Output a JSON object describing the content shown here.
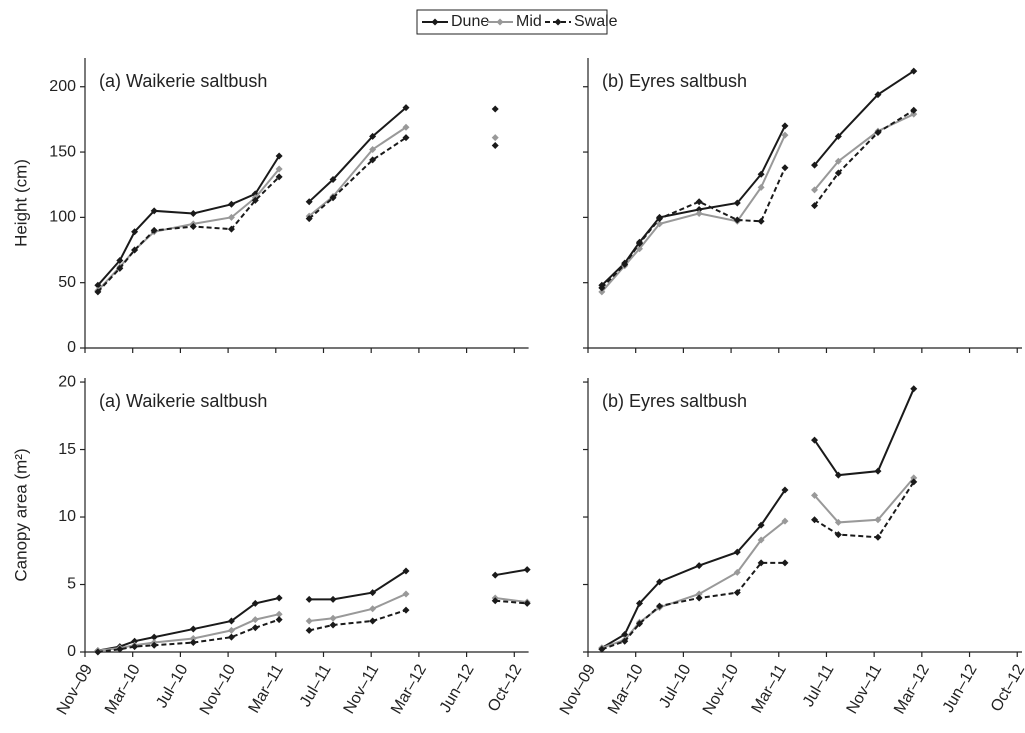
{
  "chart_data": [
    {
      "type": "line",
      "panel": "(a)",
      "title": "Waikerie saltbush",
      "ylabel": "Height (cm)",
      "x": [
        0.27,
        0.73,
        1.04,
        1.45,
        2.27,
        3.07,
        3.57,
        4.07,
        null,
        4.7,
        5.2,
        6.03,
        6.73,
        null,
        8.6
      ],
      "xlim": [
        0,
        9.3
      ],
      "xticks": [
        0,
        1,
        2,
        3,
        4,
        5,
        6,
        7,
        8,
        9
      ],
      "xtick_labels": false,
      "ylim": [
        0,
        222
      ],
      "yticks": [
        0,
        50,
        100,
        150,
        200
      ],
      "ytick_labels": true,
      "series": [
        {
          "name": "Dune",
          "color": "#1a1a1a",
          "linestyle": "solid",
          "values": [
            48,
            67,
            89,
            105,
            103,
            110,
            118,
            147,
            null,
            112,
            129,
            162,
            184,
            null,
            183
          ]
        },
        {
          "name": "Mid",
          "color": "#999999",
          "linestyle": "solid",
          "values": [
            44,
            62,
            75,
            89,
            95,
            100,
            115,
            137,
            null,
            101,
            116,
            152,
            169,
            null,
            161
          ]
        },
        {
          "name": "Swale",
          "color": "#1a1a1a",
          "linestyle": "dashed",
          "values": [
            43,
            61,
            75,
            90,
            93,
            91,
            113,
            131,
            null,
            99,
            115,
            144,
            161,
            null,
            155
          ]
        }
      ]
    },
    {
      "type": "line",
      "panel": "(b)",
      "title": "Eyres saltbush",
      "x": [
        0.29,
        0.77,
        1.08,
        1.5,
        2.33,
        3.13,
        3.63,
        4.13,
        null,
        4.75,
        5.25,
        6.08,
        6.83
      ],
      "xlim": [
        0,
        9.1
      ],
      "xticks": [
        0,
        1,
        2,
        3,
        4,
        5,
        6,
        7,
        8,
        9
      ],
      "xtick_labels": false,
      "ylim": [
        0,
        222
      ],
      "yticks": [
        0,
        50,
        100,
        150,
        200
      ],
      "ytick_labels": false,
      "series": [
        {
          "name": "Dune",
          "color": "#1a1a1a",
          "linestyle": "solid",
          "values": [
            48,
            65,
            81,
            100,
            106,
            111,
            133,
            170,
            null,
            140,
            162,
            194,
            212
          ]
        },
        {
          "name": "Mid",
          "color": "#999999",
          "linestyle": "solid",
          "values": [
            43,
            63,
            76,
            95,
            103,
            97,
            123,
            163,
            null,
            121,
            143,
            166,
            179
          ]
        },
        {
          "name": "Swale",
          "color": "#1a1a1a",
          "linestyle": "dashed",
          "values": [
            46,
            64,
            80,
            99,
            112,
            98,
            97,
            138,
            null,
            109,
            134,
            165,
            182
          ]
        }
      ]
    },
    {
      "type": "line",
      "panel": "(a)",
      "title": "Waikerie saltbush",
      "ylabel": "Canopy area (m²)",
      "x": [
        0.27,
        0.73,
        1.04,
        1.45,
        2.27,
        3.07,
        3.57,
        4.07,
        null,
        4.7,
        5.2,
        6.03,
        6.73,
        null,
        8.6,
        9.27
      ],
      "xlim": [
        0,
        9.3
      ],
      "xtick_labels": true,
      "xticks": [
        {
          "value": 0,
          "label": "Nov–09"
        },
        {
          "value": 1,
          "label": "Mar–10"
        },
        {
          "value": 2,
          "label": "Jul–10"
        },
        {
          "value": 3,
          "label": "Nov–10"
        },
        {
          "value": 4,
          "label": "Mar–11"
        },
        {
          "value": 5,
          "label": "Jul–11"
        },
        {
          "value": 6,
          "label": "Nov–11"
        },
        {
          "value": 7,
          "label": "Mar–12"
        },
        {
          "value": 8,
          "label": "Jun–12"
        },
        {
          "value": 9,
          "label": "Oct–12"
        }
      ],
      "ylim": [
        0,
        20.3
      ],
      "yticks": [
        0,
        5,
        10,
        15,
        20
      ],
      "ytick_labels": true,
      "series": [
        {
          "name": "Dune",
          "color": "#1a1a1a",
          "linestyle": "solid",
          "values": [
            0.1,
            0.4,
            0.8,
            1.1,
            1.7,
            2.3,
            3.6,
            4.0,
            null,
            3.9,
            3.9,
            4.4,
            6.0,
            null,
            5.7,
            6.1
          ]
        },
        {
          "name": "Mid",
          "color": "#999999",
          "linestyle": "solid",
          "values": [
            0.1,
            0.3,
            0.5,
            0.7,
            1.0,
            1.6,
            2.4,
            2.8,
            null,
            2.3,
            2.5,
            3.2,
            4.3,
            null,
            4.0,
            3.7
          ]
        },
        {
          "name": "Swale",
          "color": "#1a1a1a",
          "linestyle": "dashed",
          "values": [
            0.0,
            0.2,
            0.4,
            0.5,
            0.7,
            1.1,
            1.8,
            2.4,
            null,
            1.6,
            2.0,
            2.3,
            3.1,
            null,
            3.8,
            3.6
          ]
        }
      ]
    },
    {
      "type": "line",
      "panel": "(b)",
      "title": "Eyres saltbush",
      "x": [
        0.29,
        0.77,
        1.08,
        1.5,
        2.33,
        3.13,
        3.63,
        4.13,
        null,
        4.75,
        5.25,
        6.08,
        6.83
      ],
      "xlim": [
        0,
        9.1
      ],
      "xtick_labels": true,
      "xticks": [
        {
          "value": 0,
          "label": "Nov–09"
        },
        {
          "value": 1,
          "label": "Mar–10"
        },
        {
          "value": 2,
          "label": "Jul–10"
        },
        {
          "value": 3,
          "label": "Nov–10"
        },
        {
          "value": 4,
          "label": "Mar–11"
        },
        {
          "value": 5,
          "label": "Jul–11"
        },
        {
          "value": 6,
          "label": "Nov–11"
        },
        {
          "value": 7,
          "label": "Mar–12"
        },
        {
          "value": 8,
          "label": "Jun–12"
        },
        {
          "value": 9,
          "label": "Oct–12"
        }
      ],
      "ylim": [
        0,
        20.3
      ],
      "yticks": [
        0,
        5,
        10,
        15,
        20
      ],
      "ytick_labels": false,
      "series": [
        {
          "name": "Dune",
          "color": "#1a1a1a",
          "linestyle": "solid",
          "values": [
            0.3,
            1.3,
            3.6,
            5.2,
            6.4,
            7.4,
            9.4,
            12.0,
            null,
            15.7,
            13.1,
            13.4,
            19.5
          ]
        },
        {
          "name": "Mid",
          "color": "#999999",
          "linestyle": "solid",
          "values": [
            0.3,
            0.9,
            2.2,
            3.3,
            4.3,
            5.9,
            8.3,
            9.7,
            null,
            11.6,
            9.6,
            9.8,
            12.9
          ]
        },
        {
          "name": "Swale",
          "color": "#1a1a1a",
          "linestyle": "dashed",
          "values": [
            0.2,
            0.8,
            2.1,
            3.4,
            4.0,
            4.4,
            6.6,
            6.6,
            null,
            9.8,
            8.7,
            8.5,
            12.6
          ]
        }
      ]
    }
  ]
}
